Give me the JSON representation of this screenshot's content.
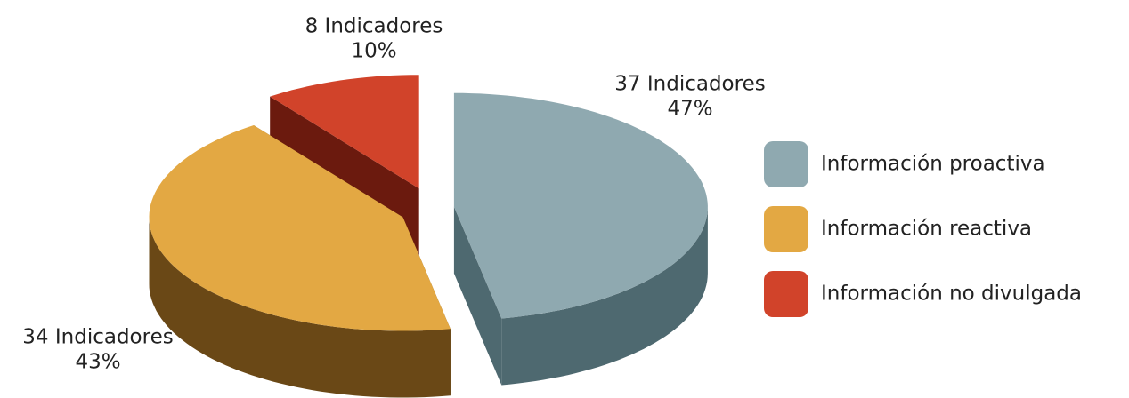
{
  "chart_data": {
    "type": "pie3d",
    "labels": [
      "Información proactiva",
      "Información reactiva",
      "Información no divulgada"
    ],
    "values": [
      47,
      43,
      10
    ],
    "value_labels": [
      "47%",
      "43%",
      "10%"
    ],
    "indicator_labels": [
      "37 Indicadores",
      "34 Indicadores",
      "8 Indicadores"
    ],
    "colors": [
      "#8fa9b0",
      "#e3a843",
      "#d1432a"
    ],
    "side_colors": [
      "#4e6970",
      "#6a4816",
      "#6b1a0e"
    ],
    "exploded": true,
    "legend": "right"
  }
}
